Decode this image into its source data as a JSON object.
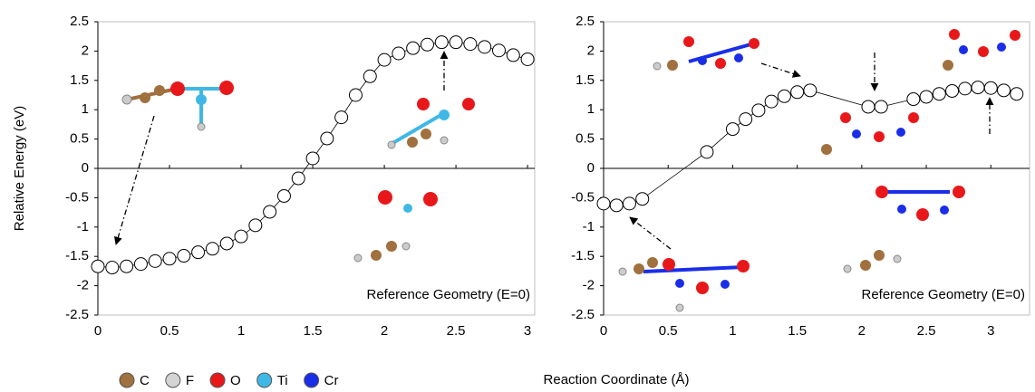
{
  "chart_data": [
    {
      "type": "line",
      "annotation": "Reference Geometry (E=0)",
      "x": [
        0,
        0.1,
        0.2,
        0.3,
        0.4,
        0.5,
        0.6,
        0.7,
        0.8,
        0.9,
        1.0,
        1.1,
        1.2,
        1.3,
        1.4,
        1.5,
        1.6,
        1.7,
        1.8,
        1.9,
        2.0,
        2.1,
        2.2,
        2.3,
        2.4,
        2.5,
        2.6,
        2.7,
        2.8,
        2.9,
        3.0
      ],
      "series": [
        {
          "color": "#000000",
          "values": [
            -1.67,
            -1.69,
            -1.67,
            -1.63,
            -1.58,
            -1.54,
            -1.49,
            -1.43,
            -1.37,
            -1.28,
            -1.16,
            -0.97,
            -0.74,
            -0.47,
            -0.17,
            0.17,
            0.51,
            0.87,
            1.25,
            1.57,
            1.85,
            1.96,
            2.05,
            2.11,
            2.15,
            2.15,
            2.12,
            2.07,
            2.01,
            1.93,
            1.86
          ]
        }
      ],
      "xlim": [
        0,
        3.05
      ],
      "xticks": [
        0,
        0.5,
        1,
        1.5,
        2,
        2.5,
        3
      ],
      "ylim": [
        -2.5,
        2.5
      ],
      "yticks": [
        -2.5,
        -2,
        -1.5,
        -1,
        -0.5,
        0,
        0.5,
        1,
        1.5,
        2,
        2.5
      ]
    },
    {
      "type": "line",
      "annotation": "Reference Geometry (E=0)",
      "x": [
        0,
        0.1,
        0.2,
        0.3,
        0.8,
        1.0,
        1.1,
        1.2,
        1.3,
        1.4,
        1.5,
        1.6,
        2.05,
        2.15,
        2.4,
        2.5,
        2.6,
        2.7,
        2.8,
        2.9,
        3.0,
        3.1,
        3.2
      ],
      "series": [
        {
          "color": "#000000",
          "values": [
            -0.6,
            -0.63,
            -0.6,
            -0.52,
            0.28,
            0.67,
            0.84,
            0.99,
            1.14,
            1.23,
            1.3,
            1.33,
            1.05,
            1.05,
            1.18,
            1.22,
            1.27,
            1.32,
            1.36,
            1.38,
            1.37,
            1.33,
            1.27
          ]
        }
      ],
      "xlim": [
        0,
        3.3
      ],
      "xticks": [
        0,
        0.5,
        1,
        1.5,
        2,
        2.5,
        3
      ],
      "ylim": [
        -2.5,
        2.5
      ],
      "yticks": [
        -2.5,
        -2,
        -1.5,
        -1,
        -0.5,
        0,
        0.5,
        1,
        1.5,
        2,
        2.5
      ]
    }
  ],
  "figure": {
    "y_label": "Relative Energy (eV)",
    "x_label": "Reaction Coordinate (Å)",
    "atom_legend": [
      {
        "label": "C",
        "color": "#a0703f"
      },
      {
        "label": "F",
        "color": "#d4d4d4"
      },
      {
        "label": "O",
        "color": "#e8181a"
      },
      {
        "label": "Ti",
        "color": "#3fb8e6"
      },
      {
        "label": "Cr",
        "color": "#1a2ee8"
      }
    ]
  }
}
